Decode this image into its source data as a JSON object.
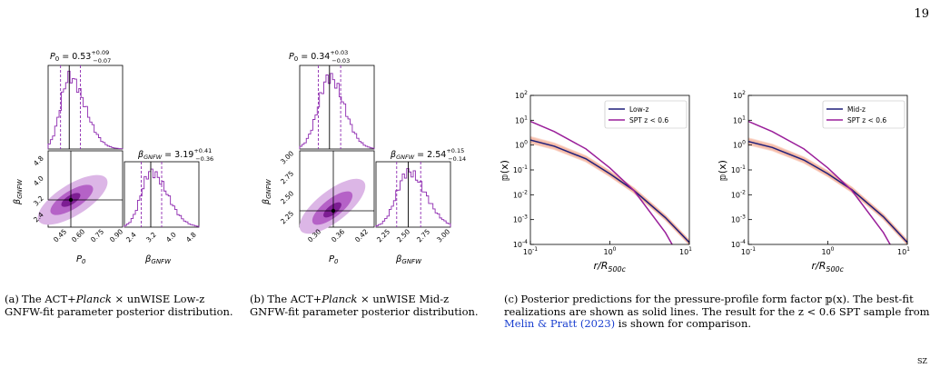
{
  "page_number": "19",
  "corner_mark": "SZ",
  "panel_a": {
    "title_p0": "P_0 = 0.53^{+0.09}_{-0.07}",
    "title_beta": "β_GNFW = 3.19^{+0.41}_{-0.36}",
    "x_ticks": [
      "0.45",
      "0.60",
      "0.75",
      "0.90"
    ],
    "y_ticks": [
      "2.4",
      "3.2",
      "4.0",
      "4.8"
    ],
    "beta_ticks": [
      "2.4",
      "3.2",
      "4.0",
      "4.8"
    ],
    "xlabel": "P_0",
    "ylabel": "β_GNFW",
    "beta_label": "β_GNFW",
    "caption_label": "(a)",
    "caption_1": "The ACT+",
    "caption_italic": "Planck",
    "caption_2": " × unWISE Low-z GNFW-fit parameter posterior distribution."
  },
  "panel_b": {
    "title_p0": "P_0 = 0.34^{+0.03}_{-0.03}",
    "title_beta": "β_GNFW = 2.54^{+0.15}_{-0.14}",
    "x_ticks": [
      "0.30",
      "0.36",
      "0.42"
    ],
    "y_ticks": [
      "2.25",
      "2.50",
      "2.75",
      "3.00"
    ],
    "beta_ticks": [
      "2.25",
      "2.50",
      "2.75",
      "3.00"
    ],
    "xlabel": "P_0",
    "ylabel": "β_GNFW",
    "beta_label": "β_GNFW",
    "caption_label": "(b)",
    "caption_1": "The ACT+",
    "caption_italic": "Planck",
    "caption_2": " × unWISE Mid-z GNFW-fit parameter posterior distribution."
  },
  "panel_c": {
    "caption_label": "(c)",
    "caption_1": "Posterior predictions for the pressure-profile form factor 𝕡(x). The best-fit realizations are shown as solid lines. The result for the z < 0.6 SPT sample from ",
    "caption_cite": "Melin & Pratt (2023)",
    "caption_2": " is shown for comparison.",
    "legend_spt": "SPT z < 0.6",
    "ylabel": "𝕡(x)",
    "xlabel": "r/R_500c"
  },
  "colors": {
    "navy": "#1f1f7a",
    "purple": "#9a1f9a",
    "band": "#f3a58c",
    "contour_outer": "#dcb6e6",
    "contour_mid": "#b562c7",
    "contour_inner": "#7d1d93",
    "hist": "#8e2ab0",
    "cite": "#1a3fd0"
  },
  "chart_data": [
    {
      "type": "line",
      "panel": "c-left",
      "series": [
        {
          "name": "Low-z",
          "color": "#1f1f7a",
          "x": [
            0.1,
            0.2,
            0.5,
            1,
            2,
            5,
            10
          ],
          "y": [
            1.6,
            0.9,
            0.28,
            0.07,
            0.015,
            0.0012,
            0.00012
          ]
        },
        {
          "name": "SPT z < 0.6",
          "color": "#9a1f9a",
          "x": [
            0.1,
            0.2,
            0.5,
            1,
            2,
            5,
            10
          ],
          "y": [
            9.0,
            3.5,
            0.7,
            0.12,
            0.015,
            0.0003,
            6e-06
          ]
        }
      ],
      "xscale": "log",
      "yscale": "log",
      "xlim": [
        0.1,
        10
      ],
      "ylim": [
        0.0001,
        100
      ],
      "x_ticks": [
        "10^-1",
        "10^0",
        "10^1"
      ],
      "y_ticks": [
        "10^-4",
        "10^-3",
        "10^-2",
        "10^-1",
        "10^0",
        "10^1",
        "10^2"
      ],
      "legend": "top-right"
    },
    {
      "type": "line",
      "panel": "c-right",
      "series": [
        {
          "name": "Mid-z",
          "color": "#1f1f7a",
          "x": [
            0.1,
            0.2,
            0.5,
            1,
            2,
            5,
            10
          ],
          "y": [
            1.4,
            0.8,
            0.25,
            0.07,
            0.016,
            0.0013,
            0.00012
          ]
        },
        {
          "name": "SPT z < 0.6",
          "color": "#9a1f9a",
          "x": [
            0.1,
            0.2,
            0.5,
            1,
            2,
            5,
            10
          ],
          "y": [
            9.0,
            3.5,
            0.7,
            0.12,
            0.015,
            0.0003,
            6e-06
          ]
        }
      ],
      "xscale": "log",
      "yscale": "log",
      "xlim": [
        0.1,
        10
      ],
      "ylim": [
        0.0001,
        100
      ],
      "x_ticks": [
        "10^-1",
        "10^0",
        "10^1"
      ],
      "y_ticks": [
        "10^-4",
        "10^-3",
        "10^-2",
        "10^-1",
        "10^0",
        "10^1",
        "10^2"
      ],
      "legend": "top-right"
    },
    {
      "type": "scatter",
      "panel": "a-corner",
      "param_p0": {
        "median": 0.53,
        "lo": 0.46,
        "hi": 0.62
      },
      "param_beta": {
        "median": 3.19,
        "lo": 2.83,
        "hi": 3.6
      },
      "x_range": [
        0.36,
        0.96
      ],
      "y_range": [
        2.2,
        5.0
      ]
    },
    {
      "type": "scatter",
      "panel": "b-corner",
      "param_p0": {
        "median": 0.34,
        "lo": 0.31,
        "hi": 0.37
      },
      "param_beta": {
        "median": 2.54,
        "lo": 2.4,
        "hi": 2.69
      },
      "x_range": [
        0.26,
        0.46
      ],
      "y_range": [
        2.15,
        3.05
      ]
    }
  ]
}
